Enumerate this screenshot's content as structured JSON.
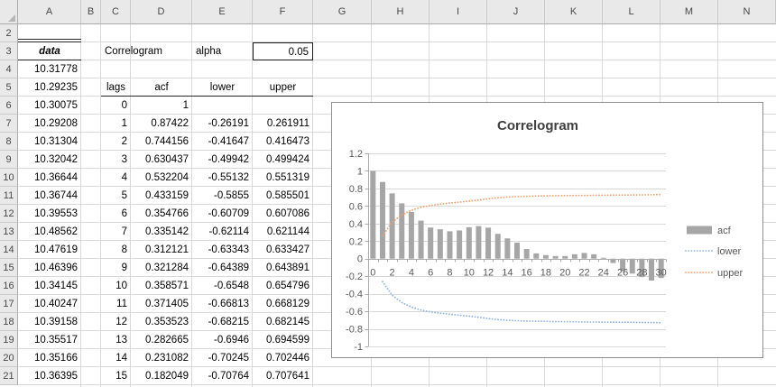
{
  "sheet": {
    "col_labels": [
      "A",
      "B",
      "C",
      "D",
      "E",
      "F",
      "G",
      "H",
      "I",
      "J",
      "K",
      "L",
      "M",
      "N"
    ],
    "row_labels": [
      "2",
      "3",
      "4",
      "5",
      "6",
      "7",
      "8",
      "9",
      "10",
      "11",
      "12",
      "13",
      "14",
      "15",
      "16",
      "17",
      "18",
      "19",
      "20",
      "21"
    ],
    "labels": {
      "data_header": "data",
      "correlogram": "Correlogram",
      "alpha": "alpha",
      "alpha_value": "0.05"
    },
    "data_column": [
      "10.31778",
      "10.29235",
      "10.30075",
      "10.29208",
      "10.31304",
      "10.32042",
      "10.36644",
      "10.36744",
      "10.39553",
      "10.48562",
      "10.47619",
      "10.46396",
      "10.34145",
      "10.40247",
      "10.39158",
      "10.35517",
      "10.35166",
      "10.36395"
    ],
    "table": {
      "headers": [
        "lags",
        "acf",
        "lower",
        "upper"
      ],
      "rows": [
        [
          "0",
          "1",
          "",
          ""
        ],
        [
          "1",
          "0.87422",
          "-0.26191",
          "0.261911"
        ],
        [
          "2",
          "0.744156",
          "-0.41647",
          "0.416473"
        ],
        [
          "3",
          "0.630437",
          "-0.49942",
          "0.499424"
        ],
        [
          "4",
          "0.532204",
          "-0.55132",
          "0.551319"
        ],
        [
          "5",
          "0.433159",
          "-0.5855",
          "0.585501"
        ],
        [
          "6",
          "0.354766",
          "-0.60709",
          "0.607086"
        ],
        [
          "7",
          "0.335142",
          "-0.62114",
          "0.621144"
        ],
        [
          "8",
          "0.312121",
          "-0.63343",
          "0.633427"
        ],
        [
          "9",
          "0.321284",
          "-0.64389",
          "0.643891"
        ],
        [
          "10",
          "0.358571",
          "-0.6548",
          "0.654796"
        ],
        [
          "11",
          "0.371405",
          "-0.66813",
          "0.668129"
        ],
        [
          "12",
          "0.353523",
          "-0.68215",
          "0.682145"
        ],
        [
          "13",
          "0.282665",
          "-0.6946",
          "0.694599"
        ],
        [
          "14",
          "0.231082",
          "-0.70245",
          "0.702446"
        ],
        [
          "15",
          "0.182049",
          "-0.70764",
          "0.707641"
        ]
      ]
    }
  },
  "chart_data": {
    "type": "combo-bar-line",
    "title": "Correlogram",
    "x": [
      0,
      1,
      2,
      3,
      4,
      5,
      6,
      7,
      8,
      9,
      10,
      11,
      12,
      13,
      14,
      15,
      16,
      17,
      18,
      19,
      20,
      21,
      22,
      23,
      24,
      25,
      26,
      27,
      28,
      29,
      30
    ],
    "series": [
      {
        "name": "acf",
        "type": "bar",
        "color": "#A6A6A6",
        "values": [
          1,
          0.87422,
          0.744156,
          0.630437,
          0.532204,
          0.433159,
          0.354766,
          0.335142,
          0.312121,
          0.321284,
          0.358571,
          0.371405,
          0.353523,
          0.282665,
          0.231082,
          0.182049,
          0.11,
          0.06,
          0.04,
          0.03,
          0.03,
          0.05,
          0.065,
          0.05,
          0.01,
          -0.05,
          -0.14,
          -0.17,
          -0.21,
          -0.25,
          -0.22
        ]
      },
      {
        "name": "lower",
        "type": "dotted-line",
        "color": "#92B4E3",
        "values": [
          null,
          -0.26191,
          -0.41647,
          -0.49942,
          -0.55132,
          -0.5855,
          -0.60709,
          -0.62114,
          -0.63343,
          -0.64389,
          -0.6548,
          -0.66813,
          -0.68215,
          -0.6946,
          -0.70245,
          -0.70764,
          -0.711,
          -0.7135,
          -0.7155,
          -0.717,
          -0.7185,
          -0.72,
          -0.7212,
          -0.7222,
          -0.7231,
          -0.724,
          -0.7249,
          -0.7259,
          -0.727,
          -0.7283,
          -0.7297
        ]
      },
      {
        "name": "upper",
        "type": "dotted-line",
        "color": "#EFA272",
        "values": [
          null,
          0.261911,
          0.416473,
          0.499424,
          0.551319,
          0.585501,
          0.607086,
          0.621144,
          0.633427,
          0.643891,
          0.654796,
          0.668129,
          0.682145,
          0.694599,
          0.702446,
          0.707641,
          0.711,
          0.7135,
          0.7155,
          0.717,
          0.7185,
          0.72,
          0.7212,
          0.7222,
          0.7231,
          0.724,
          0.7249,
          0.7259,
          0.727,
          0.7283,
          0.7297
        ]
      }
    ],
    "ylim": [
      -1,
      1.2
    ],
    "y_tick_labels": [
      "1.2",
      "1",
      "0.8",
      "0.6",
      "0.4",
      "0.2",
      "0",
      "-0.2",
      "-0.4",
      "-0.6",
      "-0.8",
      "-1"
    ],
    "x_tick_labels": [
      "0",
      "2",
      "4",
      "6",
      "8",
      "10",
      "12",
      "14",
      "16",
      "18",
      "20",
      "22",
      "24",
      "26",
      "28",
      "30"
    ],
    "legend_position": "right",
    "grid": true,
    "colors": {
      "axis": "#ABABAB",
      "gridline": "#D9D9D9",
      "tick_text": "#595959",
      "title_text": "#404040"
    }
  }
}
